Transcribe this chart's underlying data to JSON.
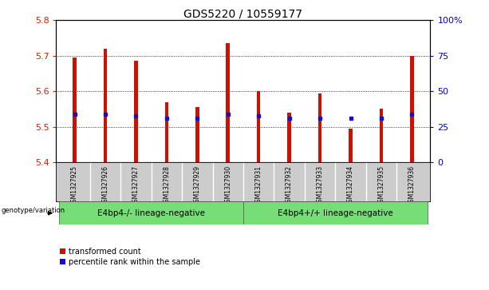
{
  "title": "GDS5220 / 10559177",
  "samples": [
    "GSM1327925",
    "GSM1327926",
    "GSM1327927",
    "GSM1327928",
    "GSM1327929",
    "GSM1327930",
    "GSM1327931",
    "GSM1327932",
    "GSM1327933",
    "GSM1327934",
    "GSM1327935",
    "GSM1327936"
  ],
  "transformed_count": [
    5.695,
    5.72,
    5.687,
    5.57,
    5.555,
    5.735,
    5.6,
    5.54,
    5.595,
    5.495,
    5.552,
    5.7
  ],
  "percentile_rank": [
    5.535,
    5.535,
    5.53,
    5.525,
    5.525,
    5.535,
    5.53,
    5.525,
    5.525,
    5.525,
    5.525,
    5.535
  ],
  "baseline": 5.4,
  "ylim_left": [
    5.4,
    5.8
  ],
  "ylim_right": [
    0,
    100
  ],
  "yticks_left": [
    5.4,
    5.5,
    5.6,
    5.7,
    5.8
  ],
  "yticks_right": [
    0,
    25,
    50,
    75,
    100
  ],
  "ytick_labels_right": [
    "0",
    "25",
    "50",
    "75",
    "100%"
  ],
  "group1_label": "E4bp4-/- lineage-negative",
  "group2_label": "E4bp4+/+ lineage-negative",
  "group1_indices": [
    0,
    1,
    2,
    3,
    4,
    5
  ],
  "group2_indices": [
    6,
    7,
    8,
    9,
    10,
    11
  ],
  "bar_color": "#cc1100",
  "blue_color": "#1111cc",
  "group_bg_color": "#77dd77",
  "sample_bg_color": "#cccccc",
  "legend_red_label": "transformed count",
  "legend_blue_label": "percentile rank within the sample",
  "bar_width": 0.12,
  "title_fontsize": 10,
  "axis_label_color_left": "#cc2200",
  "axis_label_color_right": "#0000cc"
}
